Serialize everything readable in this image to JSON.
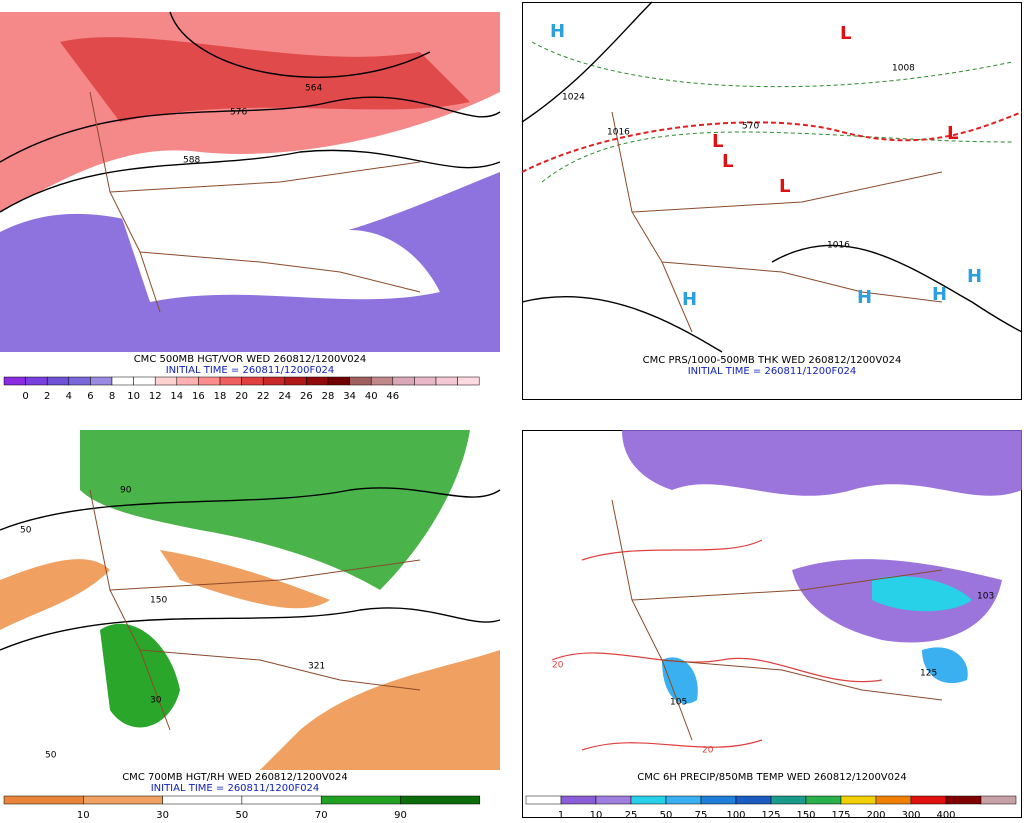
{
  "panels": [
    {
      "caption": "CMC 500MB HGT/VOR WED 260812/1200V024",
      "initial_time": "INITIAL TIME = 260811/1200F024",
      "colorbar_labels": [
        "0",
        "2",
        "4",
        "6",
        "8",
        "10",
        "12",
        "14",
        "16",
        "18",
        "20",
        "22",
        "24",
        "26",
        "28",
        "34",
        "40",
        "46"
      ],
      "colorbar_colors": [
        "#8a2be2",
        "#7b3fe0",
        "#6f52d6",
        "#7a67d8",
        "#9a8be0",
        "#ffffff",
        "#ffffff",
        "#ffd0d0",
        "#ffb0b0",
        "#ff8c8c",
        "#f06060",
        "#e04040",
        "#c82828",
        "#b01818",
        "#900a0a",
        "#700000",
        "#a06060",
        "#c08888",
        "#d8a8b8",
        "#e8b8c8",
        "#f4c8d4",
        "#ffd8e0"
      ],
      "map_labels": [
        "564",
        "576",
        "588"
      ]
    },
    {
      "caption": "CMC PRS/1000-500MB THK WED 260812/1200V024",
      "initial_time": "INITIAL TIME = 260811/1200F024",
      "map_labels": [
        "1024",
        "1016",
        "1008",
        "1016",
        "570",
        "H",
        "H",
        "H",
        "H",
        "H",
        "L",
        "L",
        "L",
        "L",
        "L"
      ]
    },
    {
      "caption": "CMC 700MB HGT/RH WED 260812/1200V024",
      "initial_time": "INITIAL TIME = 260811/1200F024",
      "colorbar_labels": [
        "10",
        "30",
        "50",
        "70",
        "90"
      ],
      "colorbar_colors": [
        "#e8853a",
        "#f0a060",
        "#ffffff",
        "#ffffff",
        "#22a022",
        "#0c6c0c"
      ],
      "map_labels": [
        "50",
        "150",
        "30",
        "90",
        "321",
        "50"
      ]
    },
    {
      "caption": "CMC 6H PRECIP/850MB TEMP WED 260812/1200V024",
      "colorbar_labels": [
        "1",
        "10",
        "25",
        "50",
        "75",
        "100",
        "125",
        "150",
        "175",
        "200",
        "300",
        "400"
      ],
      "colorbar_colors": [
        "#ffffff",
        "#8a5cd6",
        "#a07ee0",
        "#28d0e8",
        "#3ab0f0",
        "#1e7ed8",
        "#1a5cc0",
        "#1a9a8a",
        "#2ab04a",
        "#f0d000",
        "#f08000",
        "#e01010",
        "#800000",
        "#c8a0a8"
      ],
      "map_labels": [
        "20",
        "20",
        "105",
        "103",
        "125"
      ]
    }
  ]
}
